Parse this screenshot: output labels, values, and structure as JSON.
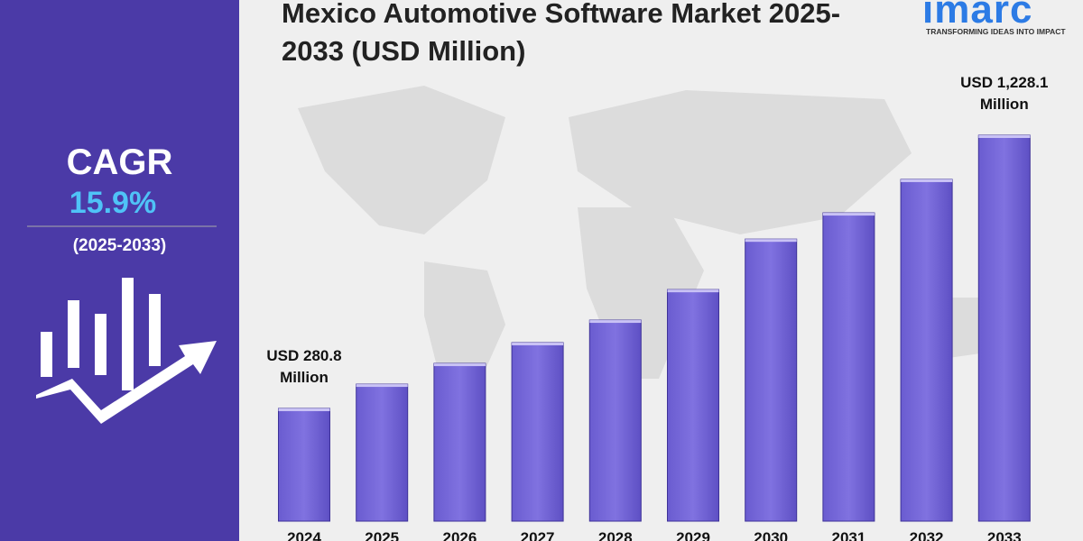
{
  "brand": {
    "name": "imarc",
    "tagline": "TRANSFORMING IDEAS INTO IMPACT"
  },
  "cagr": {
    "label": "CAGR",
    "value": "15.9%",
    "period": "(2025-2033)"
  },
  "chart_data": {
    "type": "bar",
    "title": "Mexico Automotive Software Market 2025-2033 (USD Million)",
    "categories": [
      "2024",
      "2025",
      "2026",
      "2027",
      "2028",
      "2029",
      "2030",
      "2031",
      "2032",
      "2033"
    ],
    "values": [
      280.8,
      365,
      437,
      509,
      587,
      693,
      868,
      959,
      1075,
      1228.1
    ],
    "value_labels": [
      "USD 280.8 Million",
      null,
      null,
      null,
      null,
      null,
      null,
      null,
      null,
      "USD 1,228.1 Million"
    ],
    "color": "#7b6ed9",
    "ylim": [
      -110,
      1228.1
    ]
  }
}
